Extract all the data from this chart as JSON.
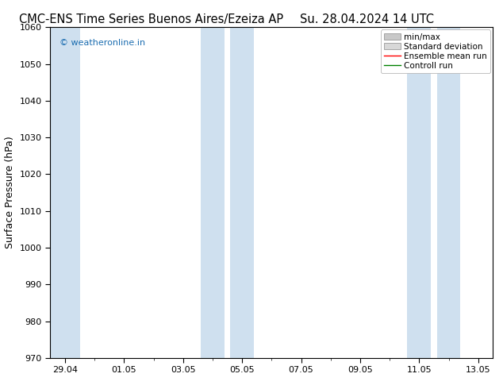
{
  "title_left": "CMC-ENS Time Series Buenos Aires/Ezeiza AP",
  "title_right": "Su. 28.04.2024 14 UTC",
  "ylabel": "Surface Pressure (hPa)",
  "ylim": [
    970,
    1060
  ],
  "yticks": [
    970,
    980,
    990,
    1000,
    1010,
    1020,
    1030,
    1040,
    1050,
    1060
  ],
  "xtick_labels": [
    "29.04",
    "01.05",
    "03.05",
    "05.05",
    "07.05",
    "09.05",
    "11.05",
    "13.05"
  ],
  "shade_color": "#cfe0ef",
  "background_color": "#ffffff",
  "watermark": "© weatheronline.in",
  "watermark_color": "#1a6cb0",
  "title_fontsize": 10.5,
  "axis_label_fontsize": 9,
  "tick_fontsize": 8,
  "legend_fontsize": 7.5
}
